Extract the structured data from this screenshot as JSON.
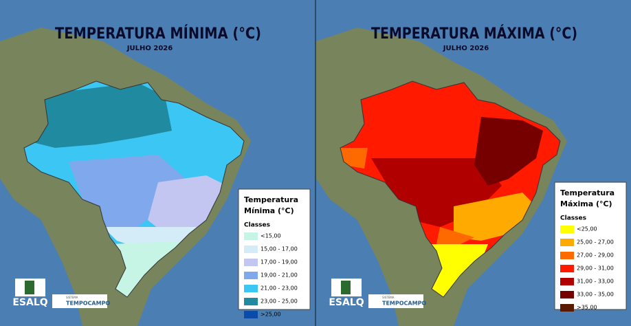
{
  "panels": [
    {
      "title": "TEMPERATURA MÍNIMA (°C)",
      "subtitle": "JULHO 2026",
      "legend_title": [
        "Temperatura",
        "Mínima (°C)"
      ],
      "classes_label": "Classes",
      "classes": [
        {
          "label": "<15,00",
          "color": "#c6f5e6"
        },
        {
          "label": "15,00 - 17,00",
          "color": "#d4ebf8"
        },
        {
          "label": "17,00 - 19,00",
          "color": "#c3c6f0"
        },
        {
          "label": "19,00 - 21,00",
          "color": "#80a8ec"
        },
        {
          "label": "21,00 - 23,00",
          "color": "#3cc6f4"
        },
        {
          "label": "23,00 - 25,00",
          "color": "#1f8aa0"
        },
        {
          "label": ">25,00",
          "color": "#0a4aa8"
        }
      ],
      "logos": {
        "esalq": "ESALQ",
        "sistema": "SISTEMA",
        "tempocampo": "TEMPOCAMPO"
      }
    },
    {
      "title": "TEMPERATURA MÁXIMA (°C)",
      "subtitle": "JULHO 2026",
      "legend_title": [
        "Temperatura",
        "Máxima (°C)"
      ],
      "classes_label": "Classes",
      "classes": [
        {
          "label": "<25,00",
          "color": "#ffff00"
        },
        {
          "label": "25,00 - 27,00",
          "color": "#ffaa00"
        },
        {
          "label": "27,00 - 29,00",
          "color": "#ff6a00"
        },
        {
          "label": "29,00 - 31,00",
          "color": "#ff1a00"
        },
        {
          "label": "31,00 - 33,00",
          "color": "#b00000"
        },
        {
          "label": "33,00 - 35,00",
          "color": "#760000"
        },
        {
          "label": ">35,00",
          "color": "#5a1a00"
        }
      ],
      "logos": {
        "esalq": "ESALQ",
        "sistema": "SISTEMA",
        "tempocampo": "TEMPOCAMPO"
      }
    }
  ]
}
